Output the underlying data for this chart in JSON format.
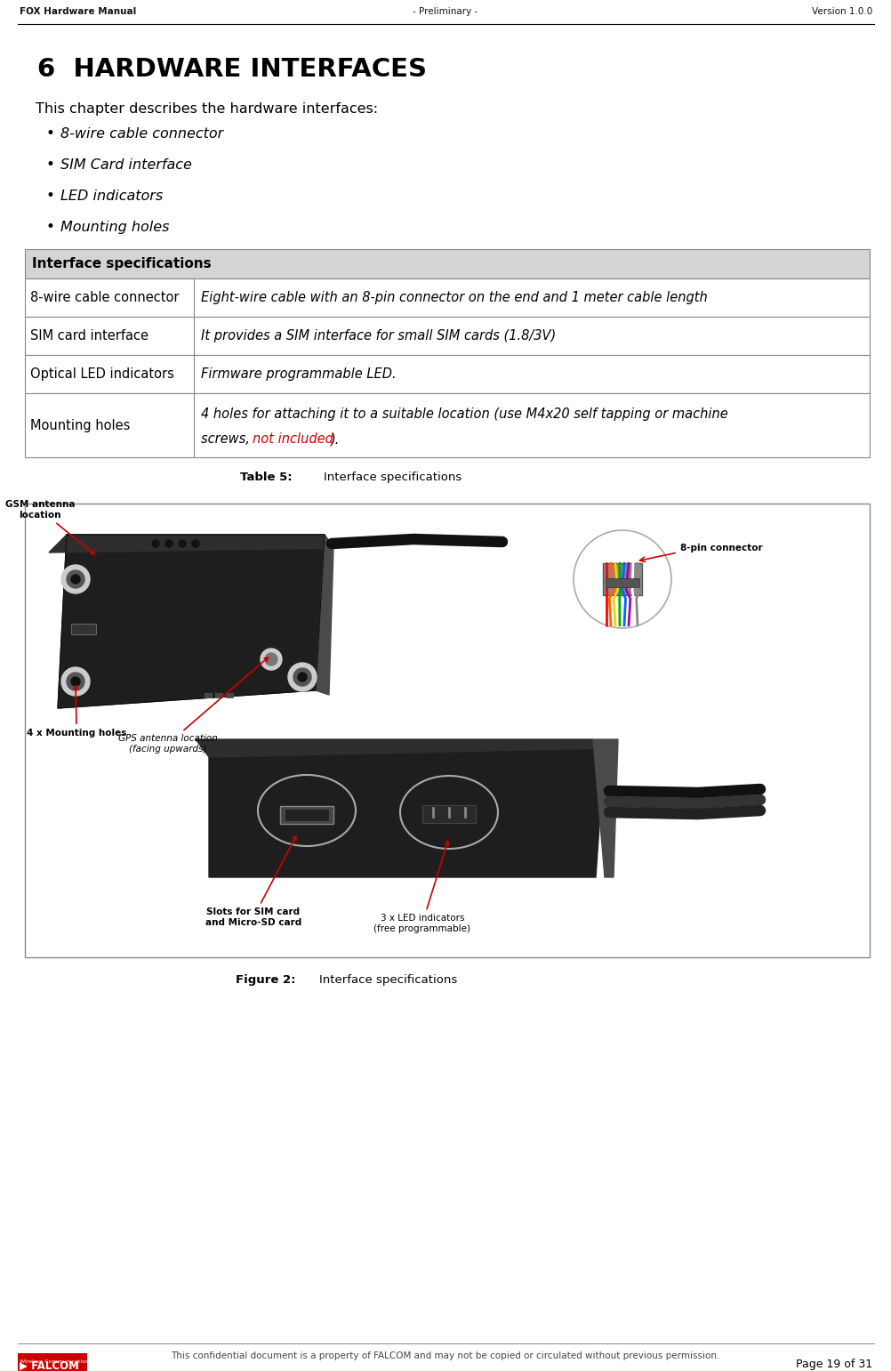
{
  "content_bg": "#f2f2f2",
  "white": "#ffffff",
  "header_text_left": "FOX Hardware Manual",
  "header_text_center": "- Preliminary -",
  "header_text_right": "Version 1.0.0",
  "chapter_title": "6  HARDWARE INTERFACES",
  "intro_text": "This chapter describes the hardware interfaces:",
  "bullets": [
    "8-wire cable connector",
    "SIM Card interface",
    "LED indicators",
    "Mounting holes"
  ],
  "table_header": "Interface specifications",
  "table_rows": [
    [
      "8-wire cable connector",
      "Eight-wire cable with an 8-pin connector on the end and 1 meter cable length"
    ],
    [
      "SIM card interface",
      "It provides a SIM interface for small SIM cards (1.8/3V)"
    ],
    [
      "Optical LED indicators",
      "Firmware programmable LED."
    ],
    [
      "Mounting holes",
      "4 holes for attaching it to a suitable location (use M4x20 self tapping or machine",
      "screws, ",
      "not included",
      ")."
    ]
  ],
  "table_caption_bold": "Table 5:",
  "table_caption_normal": "        Interface specifications",
  "figure_caption_bold": "Figure 2:",
  "figure_caption_normal": "        Interface specifications",
  "footer_text": "This confidential document is a property of FALCOM and may not be copied or circulated without previous permission.",
  "footer_page": "Page 19 of 31",
  "table_header_bg": "#d4d4d4",
  "table_border": "#888888",
  "red_color": "#cc0000",
  "figure_border": "#aaaaaa",
  "figure_bg": "#ffffff",
  "device_dark": "#1e1e1e",
  "device_mid": "#2e2e2e",
  "device_light": "#4a4a4a",
  "device_highlight": "#5a5a5a"
}
